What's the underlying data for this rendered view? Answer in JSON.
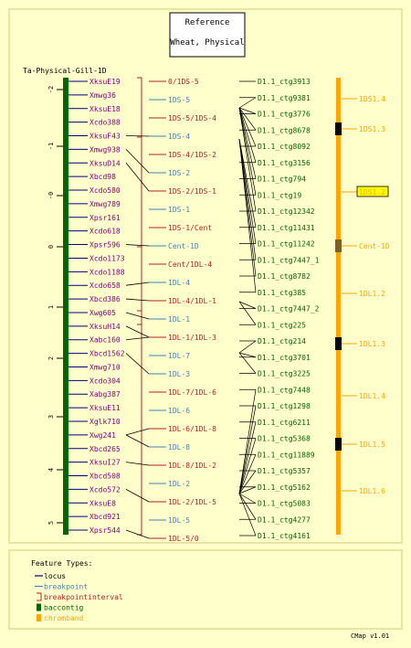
{
  "reference": {
    "title": "Reference",
    "subtitle": "Wheat, Physical"
  },
  "map_name": "Ta-Physical-Gill-1D",
  "scale_ticks": [
    "-2",
    "-1",
    "-0",
    "0",
    "1",
    "2",
    "3",
    "4",
    "5"
  ],
  "markers": [
    {
      "label": "XksuE19",
      "type": "locus"
    },
    {
      "label": "Xmwg36",
      "type": "locus"
    },
    {
      "label": "XksuE18",
      "type": "locus"
    },
    {
      "label": "Xcdo388",
      "type": "locus"
    },
    {
      "label": "XksuF43",
      "type": "locus"
    },
    {
      "label": "Xmwg938",
      "type": "locus"
    },
    {
      "label": "XksuD14",
      "type": "locus"
    },
    {
      "label": "Xbcd98",
      "type": "locus"
    },
    {
      "label": "Xcdo580",
      "type": "locus"
    },
    {
      "label": "Xmwg789",
      "type": "locus"
    },
    {
      "label": "Xpsr161",
      "type": "locus"
    },
    {
      "label": "Xcdo618",
      "type": "locus"
    },
    {
      "label": "Xpsr596",
      "type": "locus"
    },
    {
      "label": "Xcdo1173",
      "type": "locus"
    },
    {
      "label": "Xcdo1188",
      "type": "locus"
    },
    {
      "label": "Xcdo658",
      "type": "locus"
    },
    {
      "label": "Xbcd386",
      "type": "locus"
    },
    {
      "label": "Xwg605",
      "type": "locus"
    },
    {
      "label": "XksuH14",
      "type": "locus"
    },
    {
      "label": "Xabc160",
      "type": "locus"
    },
    {
      "label": "Xbcd1562",
      "type": "locus"
    },
    {
      "label": "Xmwg710",
      "type": "locus"
    },
    {
      "label": "Xcdo304",
      "type": "locus"
    },
    {
      "label": "Xabg387",
      "type": "locus"
    },
    {
      "label": "XksuE11",
      "type": "locus"
    },
    {
      "label": "Xglk710",
      "type": "locus"
    },
    {
      "label": "Xwg241",
      "type": "locus"
    },
    {
      "label": "Xbcd265",
      "type": "locus"
    },
    {
      "label": "XksuI27",
      "type": "locus"
    },
    {
      "label": "Xbcd508",
      "type": "locus"
    },
    {
      "label": "Xcdo572",
      "type": "locus"
    },
    {
      "label": "XksuE8",
      "type": "locus"
    },
    {
      "label": "Xbcd921",
      "type": "locus"
    },
    {
      "label": "Xpsr544",
      "type": "locus"
    }
  ],
  "breakpoints": [
    {
      "label": "0/1DS-5",
      "type": "breakpointinterval"
    },
    {
      "label": "1DS-5",
      "type": "breakpoint"
    },
    {
      "label": "1DS-5/1DS-4",
      "type": "breakpointinterval"
    },
    {
      "label": "1DS-4",
      "type": "breakpoint"
    },
    {
      "label": "1DS-4/1DS-2",
      "type": "breakpointinterval"
    },
    {
      "label": "1DS-2",
      "type": "breakpoint"
    },
    {
      "label": "1DS-2/1DS-1",
      "type": "breakpointinterval"
    },
    {
      "label": "1DS-1",
      "type": "breakpoint"
    },
    {
      "label": "1DS-1/Cent",
      "type": "breakpointinterval"
    },
    {
      "label": "Cent-1D",
      "type": "breakpoint"
    },
    {
      "label": "Cent/1DL-4",
      "type": "breakpointinterval"
    },
    {
      "label": "1DL-4",
      "type": "breakpoint"
    },
    {
      "label": "1DL-4/1DL-1",
      "type": "breakpointinterval"
    },
    {
      "label": "1DL-1",
      "type": "breakpoint"
    },
    {
      "label": "1DL-1/1DL-3",
      "type": "breakpointinterval"
    },
    {
      "label": "1DL-7",
      "type": "breakpoint"
    },
    {
      "label": "1DL-3",
      "type": "breakpoint"
    },
    {
      "label": "1DL-7/1DL-6",
      "type": "breakpointinterval"
    },
    {
      "label": "1DL-6",
      "type": "breakpoint"
    },
    {
      "label": "1DL-6/1DL-8",
      "type": "breakpointinterval"
    },
    {
      "label": "1DL-8",
      "type": "breakpoint"
    },
    {
      "label": "1DL-8/1DL-2",
      "type": "breakpointinterval"
    },
    {
      "label": "1DL-2",
      "type": "breakpoint"
    },
    {
      "label": "1DL-2/1DL-5",
      "type": "breakpointinterval"
    },
    {
      "label": "1DL-5",
      "type": "breakpoint"
    },
    {
      "label": "1DL-5/0",
      "type": "breakpointinterval"
    }
  ],
  "contigs": [
    "D1.1_ctg3913",
    "D1.1_ctg9381",
    "D1.1_ctg3776",
    "D1.1_ctg8678",
    "D1.1_ctg8092",
    "D1.1_ctg3156",
    "D1.1_ctg794",
    "D1.1_ctg19",
    "D1.1_ctg12342",
    "D1.1_ctg11431",
    "D1.1_ctg11242",
    "D1.1_ctg7447_1",
    "D1.1_ctg8782",
    "D1.1_ctg385",
    "D1.1_ctg7447_2",
    "D1.1_ctg225",
    "D1.1_ctg214",
    "D1.1_ctg3701",
    "D1.1_ctg3225",
    "D1.1_ctg7448",
    "D1.1_ctg1298",
    "D1.1_ctg6211",
    "D1.1_ctg5368",
    "D1.1_ctg11889",
    "D1.1_ctg5357",
    "D1.1_ctg5162",
    "D1.1_ctg5083",
    "D1.1_ctg4277",
    "D1.1_ctg4161"
  ],
  "chrombands": [
    {
      "label": "1DS1.4",
      "highlighted": false
    },
    {
      "label": "1DS1.3",
      "highlighted": false
    },
    {
      "label": "1DS1.2",
      "highlighted": true
    },
    {
      "label": "Cent-1D",
      "highlighted": false
    },
    {
      "label": "1DL1.2",
      "highlighted": false
    },
    {
      "label": "1DL1.3",
      "highlighted": false
    },
    {
      "label": "1DL1.4",
      "highlighted": false
    },
    {
      "label": "1DL1.5",
      "highlighted": false
    },
    {
      "label": "1DL1.6",
      "highlighted": false
    }
  ],
  "legend": {
    "title": "Feature Types:",
    "items": [
      {
        "label": "locus",
        "icon": "line-icon",
        "color": "#000080"
      },
      {
        "label": "breakpoint",
        "icon": "line-icon",
        "color": "#4682b4"
      },
      {
        "label": "breakpointinterval",
        "icon": "bracket-icon",
        "color": "#b22222"
      },
      {
        "label": "baccontig",
        "icon": "box-icon",
        "color": "#006400"
      },
      {
        "label": "chromband",
        "icon": "box-icon",
        "color": "#ffa500"
      }
    ]
  },
  "colors": {
    "background": "#ffffcc",
    "locus": "#800080",
    "locus_line": "#000080",
    "breakpoint": "#4682b4",
    "breakpointinterval": "#b22222",
    "baccontig": "#006400",
    "chromband": "#ffa500",
    "frame": "#e6e6a0",
    "highlight": "#ffff00"
  },
  "footer": "CMap v1.01"
}
